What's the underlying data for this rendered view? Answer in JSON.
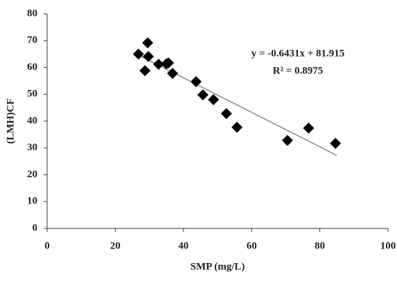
{
  "chart_data": {
    "type": "scatter",
    "x_label": "SMP (mg/L)",
    "y_label": "(LMH)CF",
    "series": [
      {
        "color": "#000000",
        "x": [
          26.8,
          29.5,
          29.7,
          28.7,
          32.7,
          35.0,
          35.6,
          36.8,
          43.7,
          45.7,
          48.8,
          52.6,
          55.7,
          70.5,
          76.7,
          84.6
        ],
        "values": [
          65,
          69.2,
          64.1,
          58.8,
          61.2,
          61.4,
          61.7,
          57.8,
          54.7,
          49.8,
          48,
          42.8,
          37.7,
          32.8,
          37.4,
          31.7
        ]
      }
    ],
    "trendline": {
      "x": [
        27,
        85
      ],
      "values": [
        64.5,
        27.2
      ],
      "color": "#555555"
    },
    "annotations": [
      "y = -0.6431x + 81.915",
      "R² = 0.8975"
    ],
    "xlim": [
      0,
      100
    ],
    "xticks": [
      0,
      20,
      40,
      60,
      80,
      100
    ],
    "ylim": [
      0,
      80
    ],
    "yticks": [
      0,
      10,
      20,
      30,
      40,
      50,
      60,
      70,
      80
    ],
    "grid": false
  }
}
